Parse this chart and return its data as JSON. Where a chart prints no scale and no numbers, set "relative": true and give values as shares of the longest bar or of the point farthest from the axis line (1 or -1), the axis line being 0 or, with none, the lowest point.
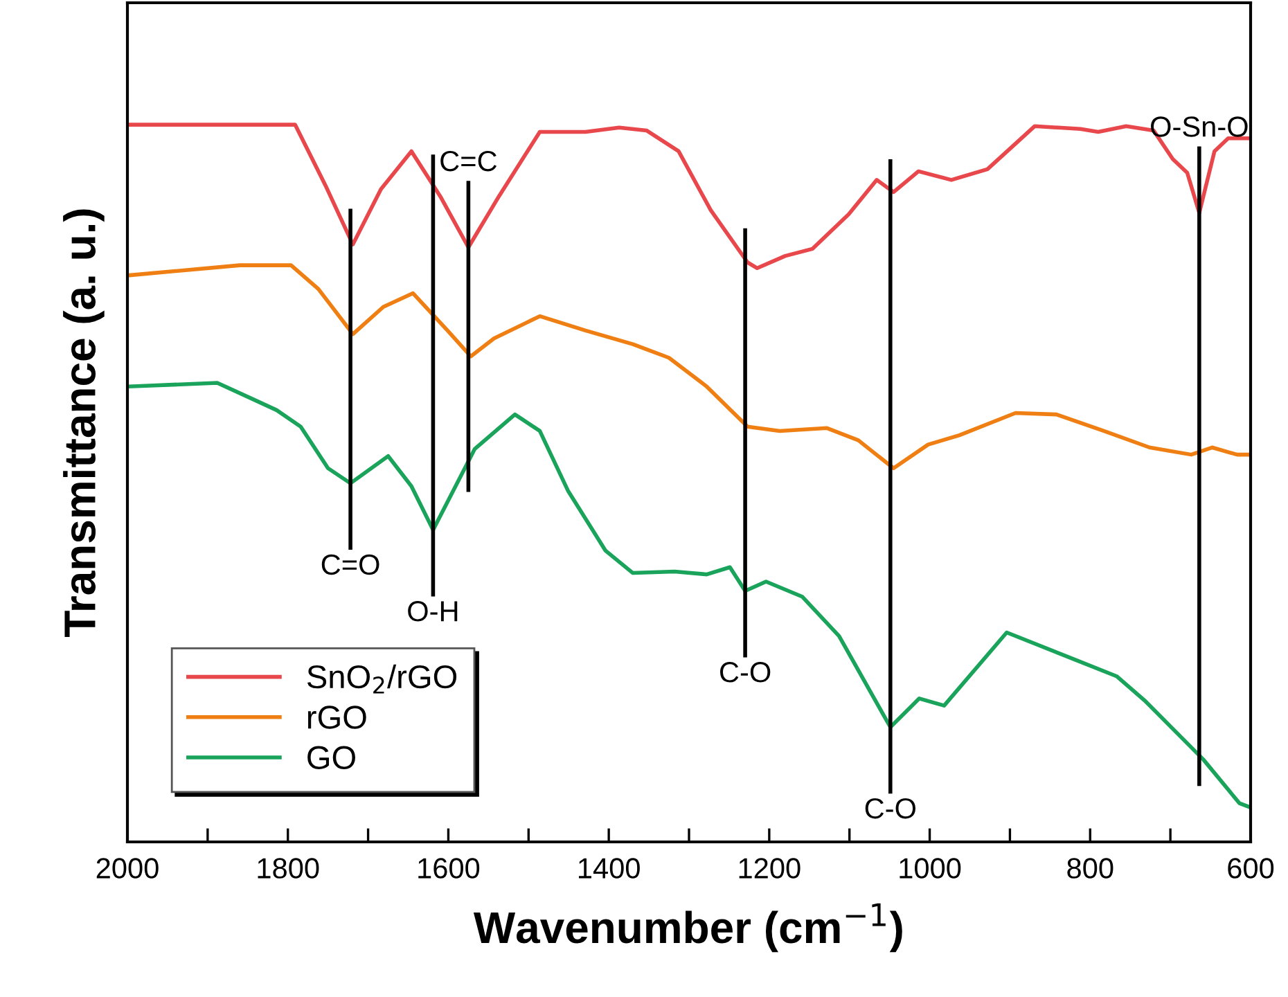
{
  "chart_data": {
    "type": "line",
    "relative": true,
    "xlabel": "Wavenumber (cm$^{−1}$)",
    "ylabel": "Transmittance (a. u.)",
    "xlim": [
      2000,
      600
    ],
    "xticks": [
      2000,
      {
        "value": 1900,
        "label": null
      },
      1800,
      {
        "value": 1700,
        "label": null
      },
      1600,
      {
        "value": 1500,
        "label": null
      },
      1400,
      {
        "value": 1300,
        "label": null
      },
      1200,
      {
        "value": 1100,
        "label": null
      },
      1000,
      {
        "value": 900,
        "label": null
      },
      800,
      {
        "value": 700,
        "label": null
      },
      600
    ],
    "tick_labels": "x",
    "grid": false,
    "legend": "bottom left",
    "marker": "none",
    "line_style": "solid",
    "series": [
      {
        "name": "SnO$_{2}$/rGO",
        "color": "#e8474b",
        "x": [
          2000,
          1900,
          1791,
          1753,
          1719,
          1684,
          1646,
          1610,
          1575,
          1537,
          1486,
          1429,
          1387,
          1353,
          1313,
          1273,
          1227,
          1215,
          1180,
          1146,
          1101,
          1066,
          1045,
          1014,
          973,
          928,
          869,
          812,
          790,
          755,
          721,
          697,
          679,
          664,
          645,
          628,
          600
        ],
        "values": [
          1.0,
          1.0,
          1.0,
          0.915,
          0.833,
          0.91,
          0.963,
          0.9,
          0.829,
          0.9,
          0.99,
          0.99,
          0.996,
          0.992,
          0.963,
          0.881,
          0.808,
          0.8,
          0.817,
          0.827,
          0.875,
          0.923,
          0.906,
          0.935,
          0.923,
          0.938,
          0.998,
          0.994,
          0.99,
          0.998,
          0.992,
          0.952,
          0.933,
          0.877,
          0.963,
          0.981,
          0.981
        ]
      },
      {
        "name": "rGO",
        "color": "#f07f13",
        "x": [
          1998,
          1860,
          1796,
          1762,
          1719,
          1681,
          1644,
          1601,
          1572,
          1543,
          1486,
          1429,
          1370,
          1325,
          1278,
          1227,
          1187,
          1128,
          1089,
          1045,
          1002,
          963,
          893,
          842,
          783,
          726,
          674,
          648,
          617,
          600
        ],
        "values": [
          0.79,
          0.804,
          0.804,
          0.771,
          0.708,
          0.746,
          0.765,
          0.713,
          0.677,
          0.702,
          0.733,
          0.713,
          0.694,
          0.675,
          0.635,
          0.579,
          0.573,
          0.577,
          0.56,
          0.521,
          0.554,
          0.567,
          0.598,
          0.596,
          0.573,
          0.55,
          0.54,
          0.55,
          0.54,
          0.54
        ]
      },
      {
        "name": "GO",
        "color": "#1aa35a",
        "x": [
          1998,
          1888,
          1843,
          1814,
          1784,
          1750,
          1722,
          1675,
          1646,
          1619,
          1567,
          1517,
          1486,
          1451,
          1404,
          1370,
          1318,
          1278,
          1249,
          1230,
          1204,
          1159,
          1113,
          1049,
          1013,
          982,
          904,
          823,
          767,
          731,
          659,
          614,
          600
        ],
        "values": [
          0.635,
          0.64,
          0.617,
          0.602,
          0.579,
          0.521,
          0.5,
          0.538,
          0.496,
          0.435,
          0.548,
          0.596,
          0.573,
          0.49,
          0.406,
          0.375,
          0.377,
          0.373,
          0.383,
          0.35,
          0.363,
          0.342,
          0.287,
          0.16,
          0.2,
          0.19,
          0.292,
          0.256,
          0.231,
          0.196,
          0.115,
          0.054,
          0.048
        ]
      }
    ],
    "ref_lines": [
      {
        "axis": "x",
        "value": 1722,
        "label": "C=O",
        "color": "#000000"
      },
      {
        "axis": "x",
        "value": 1619,
        "label": "O-H",
        "color": "#000000"
      },
      {
        "axis": "x",
        "value": 1575,
        "label": "C=C",
        "color": "#000000"
      },
      {
        "axis": "x",
        "value": 1230,
        "label": "C-O",
        "color": "#000000"
      },
      {
        "axis": "x",
        "value": 1049,
        "label": "C-O",
        "color": "#000000"
      },
      {
        "axis": "x",
        "value": 664,
        "label": "O-Sn-O",
        "color": "#000000"
      }
    ]
  }
}
